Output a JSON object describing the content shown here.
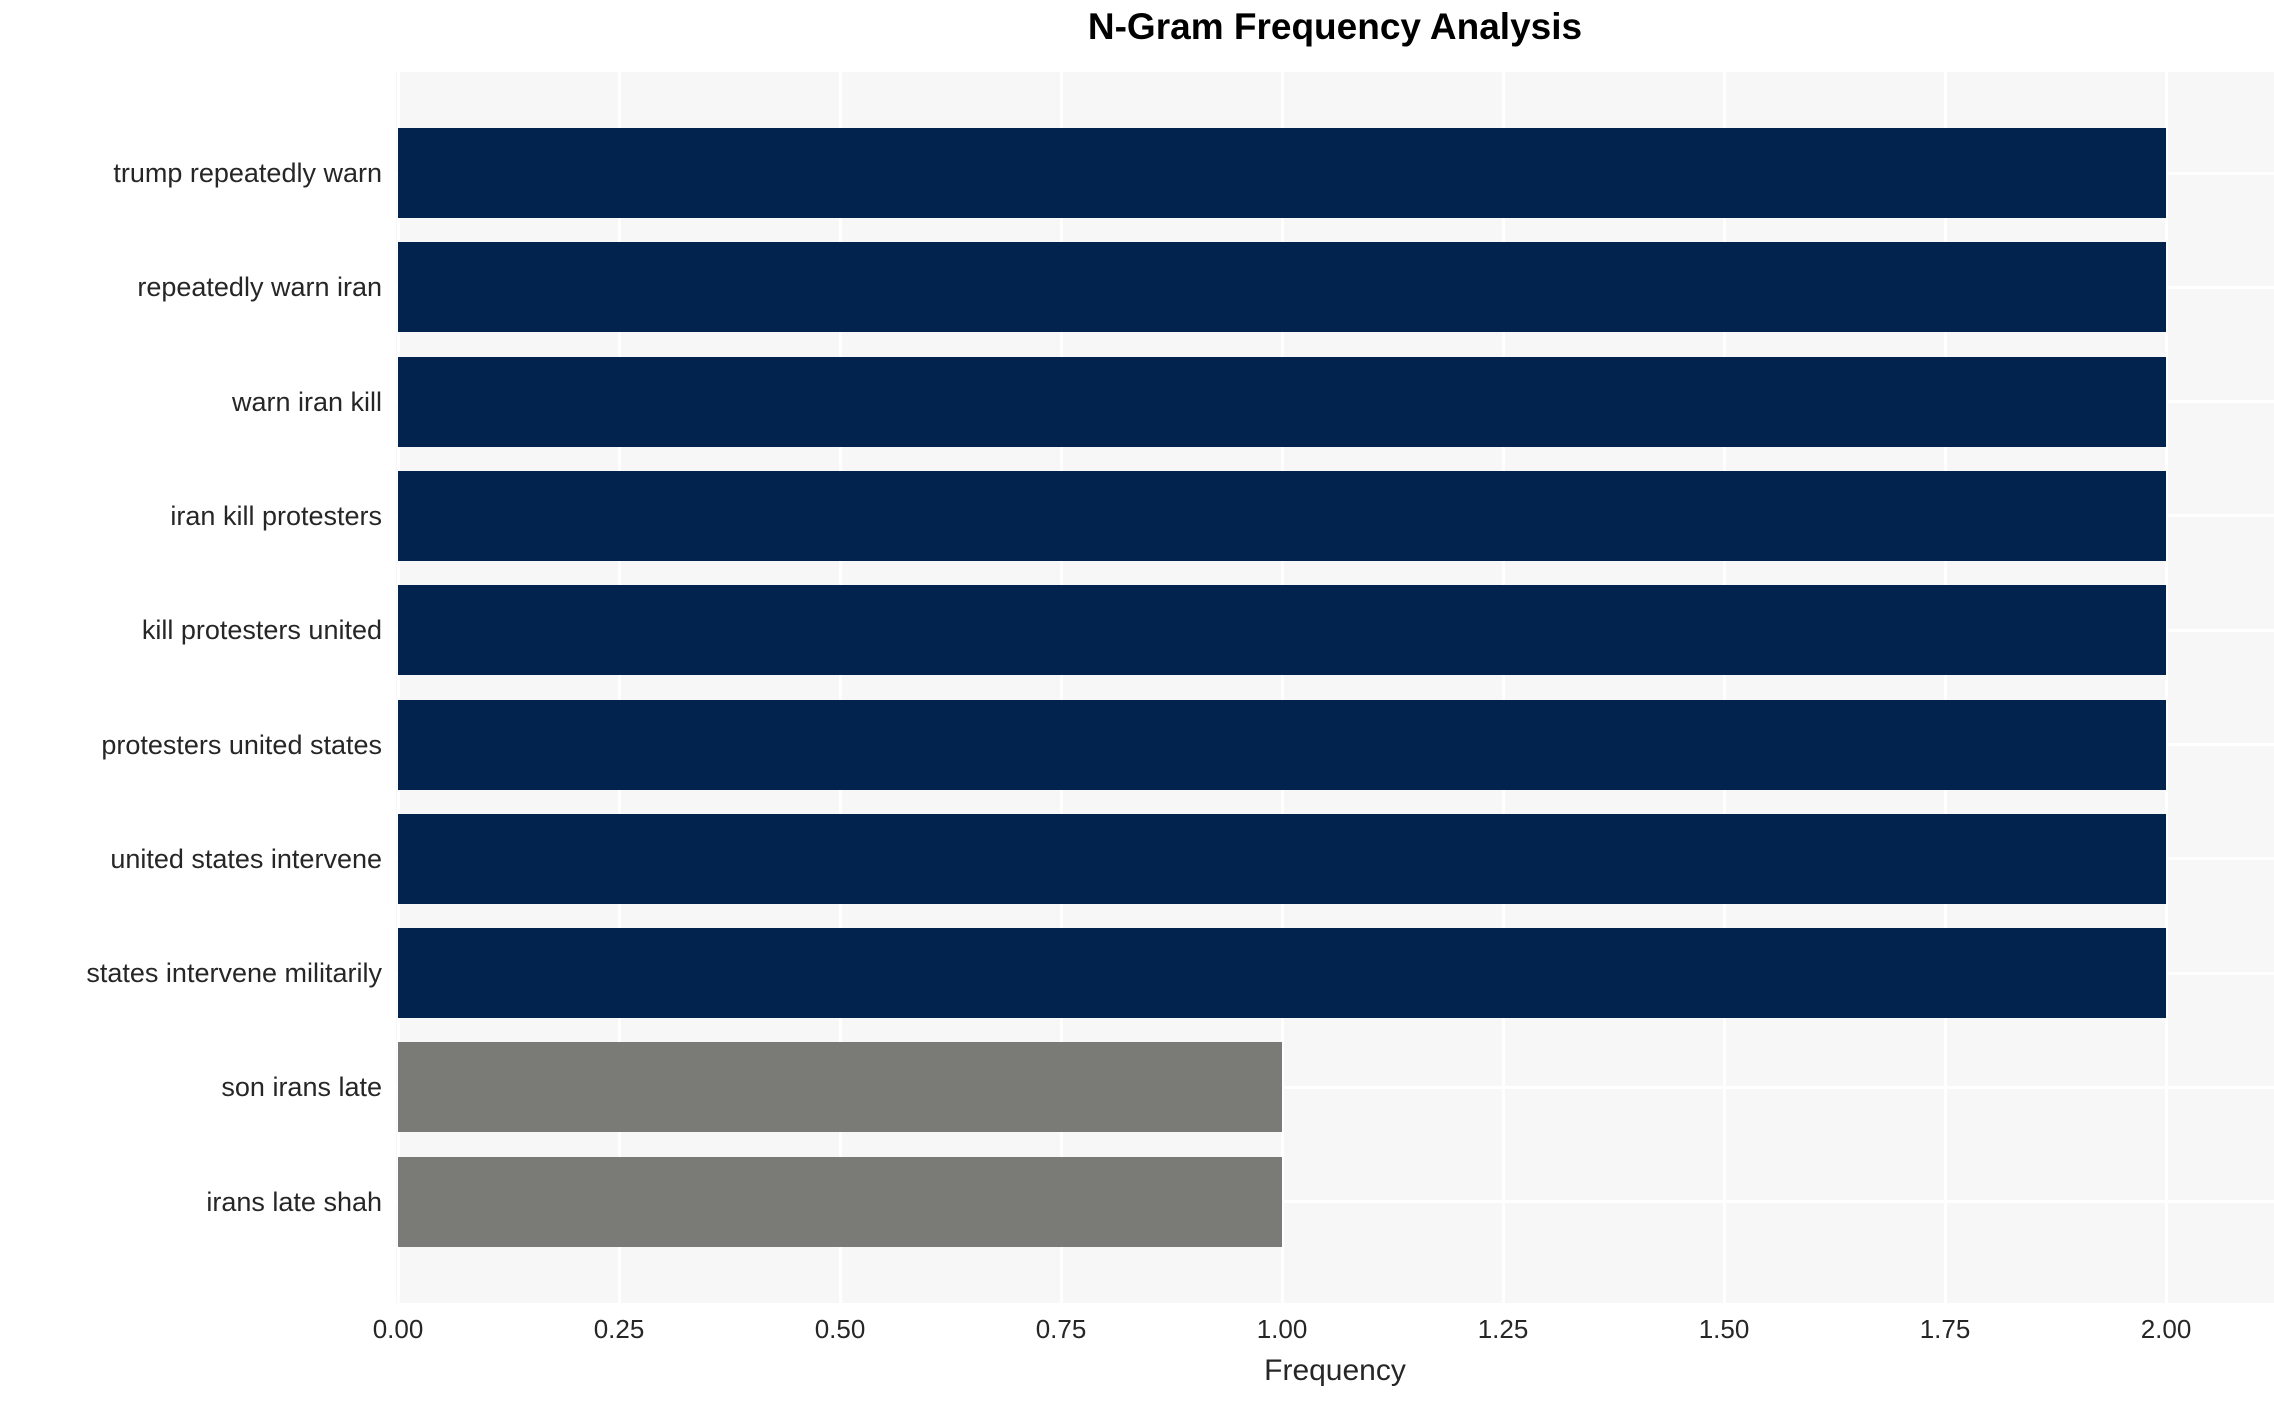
{
  "chart_data": {
    "type": "bar",
    "orientation": "horizontal",
    "title": "N-Gram Frequency Analysis",
    "xlabel": "Frequency",
    "ylabel": "",
    "categories": [
      "trump repeatedly warn",
      "repeatedly warn iran",
      "warn iran kill",
      "iran kill protesters",
      "kill protesters united",
      "protesters united states",
      "united states intervene",
      "states intervene militarily",
      "son irans late",
      "irans late shah"
    ],
    "values": [
      2,
      2,
      2,
      2,
      2,
      2,
      2,
      2,
      1,
      1
    ],
    "bar_colors": [
      "#02234d",
      "#02234d",
      "#02234d",
      "#02234d",
      "#02234d",
      "#02234d",
      "#02234d",
      "#02234d",
      "#7a7a77",
      "#7a7a77"
    ],
    "x_ticks": [
      "0.00",
      "0.25",
      "0.50",
      "0.75",
      "1.00",
      "1.25",
      "1.50",
      "1.75",
      "2.00"
    ],
    "x_tick_values": [
      0,
      0.25,
      0.5,
      0.75,
      1.0,
      1.25,
      1.5,
      1.75,
      2.0
    ],
    "xlim": [
      0,
      2.12
    ],
    "grid": true,
    "legend": "none",
    "colors": {
      "bar_high": "#02234d",
      "bar_low": "#7a7a77",
      "plot_background": "#f7f7f7",
      "gridline": "#ffffff",
      "tick_text": "#262626",
      "title_text": "#000000"
    }
  }
}
